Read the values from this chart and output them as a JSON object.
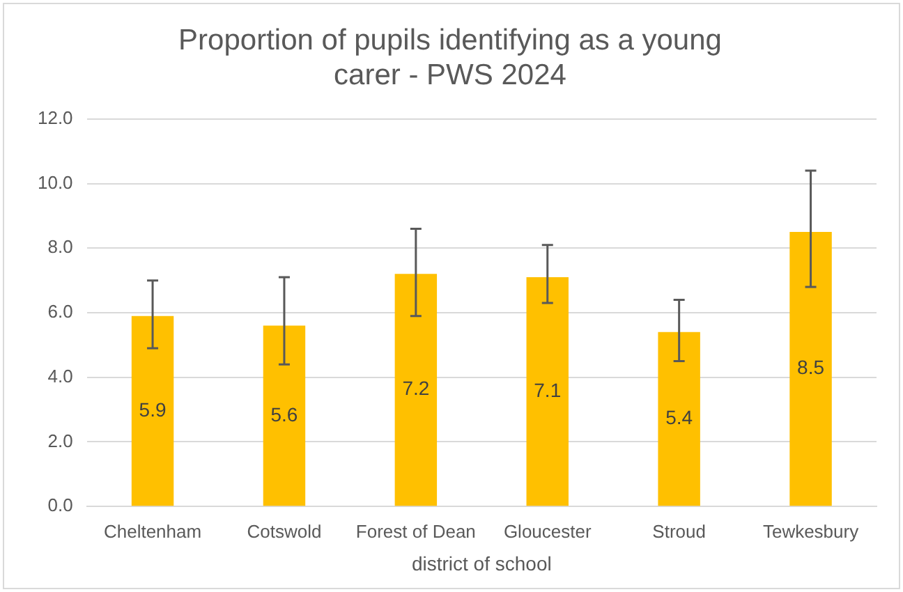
{
  "chart_data": {
    "type": "bar",
    "title": "Proportion of pupils identifying as a young carer - PWS 2024",
    "xlabel": "district of school",
    "categories": [
      "Cheltenham",
      "Cotswold",
      "Forest of Dean",
      "Gloucester",
      "Stroud",
      "Tewkesbury"
    ],
    "values": [
      5.9,
      5.6,
      7.2,
      7.1,
      5.4,
      8.5
    ],
    "color": "#ffc000",
    "errors": [
      [
        4.9,
        7.0
      ],
      [
        4.4,
        7.1
      ],
      [
        5.9,
        8.6
      ],
      [
        6.3,
        8.1
      ],
      [
        4.5,
        6.4
      ],
      [
        6.8,
        10.4
      ]
    ],
    "data_labels": true,
    "ylim": [
      0,
      12
    ],
    "yticks": [
      {
        "value": 0,
        "label": "0.0"
      },
      {
        "value": 2,
        "label": "2.0"
      },
      {
        "value": 4,
        "label": "4.0"
      },
      {
        "value": 6,
        "label": "6.0"
      },
      {
        "value": 8,
        "label": "8.0"
      },
      {
        "value": 10,
        "label": "10.0"
      },
      {
        "value": 12,
        "label": "12.0"
      }
    ],
    "grid": "y",
    "legend": false
  }
}
